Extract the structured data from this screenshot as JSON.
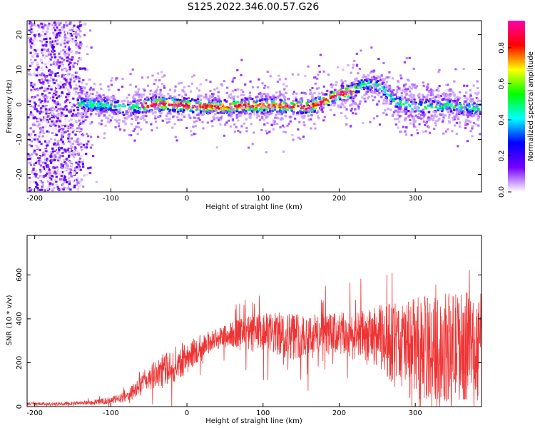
{
  "title": "S125.2022.346.00.57.G26",
  "chart_data": [
    {
      "type": "heatmap",
      "xlabel": "Height of straight line (km)",
      "ylabel": "Frequency (Hz)",
      "xlim": [
        -210,
        387
      ],
      "ylim": [
        -25,
        24
      ],
      "x_ticks": [
        "-200",
        "-100",
        "0",
        "100",
        "200",
        "300"
      ],
      "y_ticks": [
        "20",
        "10",
        "0",
        "-10",
        "-20"
      ],
      "colorbar": {
        "label": "Normalized spectral amplitude",
        "range": [
          0,
          0.95
        ],
        "ticks": [
          "0.0",
          "0.2",
          "0.4",
          "0.6",
          "0.8"
        ],
        "colors": [
          "#ffffff",
          "#7700ff",
          "#0000ff",
          "#00ffff",
          "#00ff00",
          "#ffff00",
          "#ff0000",
          "#ff00aa"
        ]
      },
      "ridge": {
        "x": [
          -145,
          -100,
          -80,
          -60,
          -40,
          0,
          40,
          80,
          120,
          160,
          200,
          215,
          230,
          250,
          270,
          300,
          340,
          387
        ],
        "y": [
          0.5,
          0,
          -1,
          0,
          0.5,
          0,
          -0.5,
          0,
          0,
          -0.5,
          3.5,
          4,
          6,
          6,
          1.5,
          -0.5,
          0,
          -1
        ]
      }
    },
    {
      "type": "line",
      "xlabel": "Height of straight line (km)",
      "ylabel": "SNR (10 * v/v)",
      "xlim": [
        -210,
        387
      ],
      "ylim": [
        0,
        780
      ],
      "x_ticks": [
        "-200",
        "-100",
        "0",
        "100",
        "200",
        "300"
      ],
      "y_ticks": [
        "0",
        "200",
        "400",
        "600"
      ],
      "color": "#ee3333",
      "series": [
        {
          "x": [
            -210,
            -180,
            -150,
            -120,
            -100,
            -80,
            -70,
            -60,
            -50,
            -40,
            -30,
            -20,
            -10,
            0,
            10,
            20,
            40,
            60,
            80,
            100,
            120,
            140,
            160,
            180,
            200,
            220,
            240,
            250,
            260,
            280,
            300,
            320,
            340,
            360,
            387
          ],
          "mean": [
            12,
            12,
            15,
            20,
            28,
            45,
            70,
            100,
            130,
            150,
            165,
            185,
            205,
            225,
            250,
            280,
            310,
            330,
            330,
            335,
            330,
            325,
            330,
            330,
            330,
            320,
            325,
            320,
            305,
            280,
            270,
            265,
            270,
            275,
            270
          ],
          "spread": [
            6,
            6,
            8,
            12,
            16,
            22,
            35,
            50,
            60,
            60,
            70,
            80,
            80,
            75,
            65,
            55,
            50,
            60,
            85,
            90,
            100,
            110,
            100,
            95,
            100,
            110,
            120,
            140,
            170,
            200,
            230,
            240,
            250,
            250,
            250
          ]
        }
      ]
    }
  ]
}
